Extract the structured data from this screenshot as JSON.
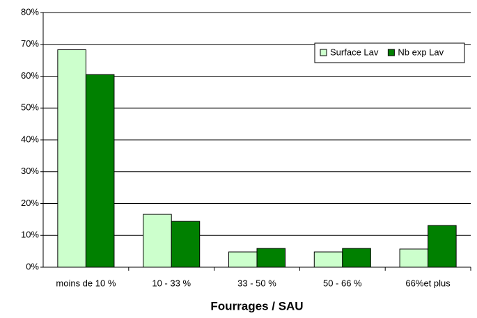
{
  "chart_data": {
    "type": "bar",
    "x_label": "Fourrages / SAU",
    "categories": [
      "moins de  10 %",
      "10 - 33 %",
      "33 - 50 %",
      "50 - 66 %",
      "66%et plus"
    ],
    "series": [
      {
        "name": "Surface Lav",
        "color": "#ccffcc",
        "values": [
          68.3,
          16.6,
          4.8,
          4.8,
          5.7
        ]
      },
      {
        "name": "Nb exp Lav",
        "color": "#008000",
        "values": [
          60.5,
          14.4,
          5.9,
          5.9,
          13.1
        ]
      }
    ],
    "ylim": [
      0,
      80
    ],
    "yticks": [
      {
        "value": 0,
        "label": "0%"
      },
      {
        "value": 10,
        "label": "10%"
      },
      {
        "value": 20,
        "label": "20%"
      },
      {
        "value": 30,
        "label": "30%"
      },
      {
        "value": 40,
        "label": "40%"
      },
      {
        "value": 50,
        "label": "50%"
      },
      {
        "value": 60,
        "label": "60%"
      },
      {
        "value": 70,
        "label": "70%"
      },
      {
        "value": 80,
        "label": "80%"
      }
    ],
    "grid": true,
    "legend": "upper right"
  }
}
